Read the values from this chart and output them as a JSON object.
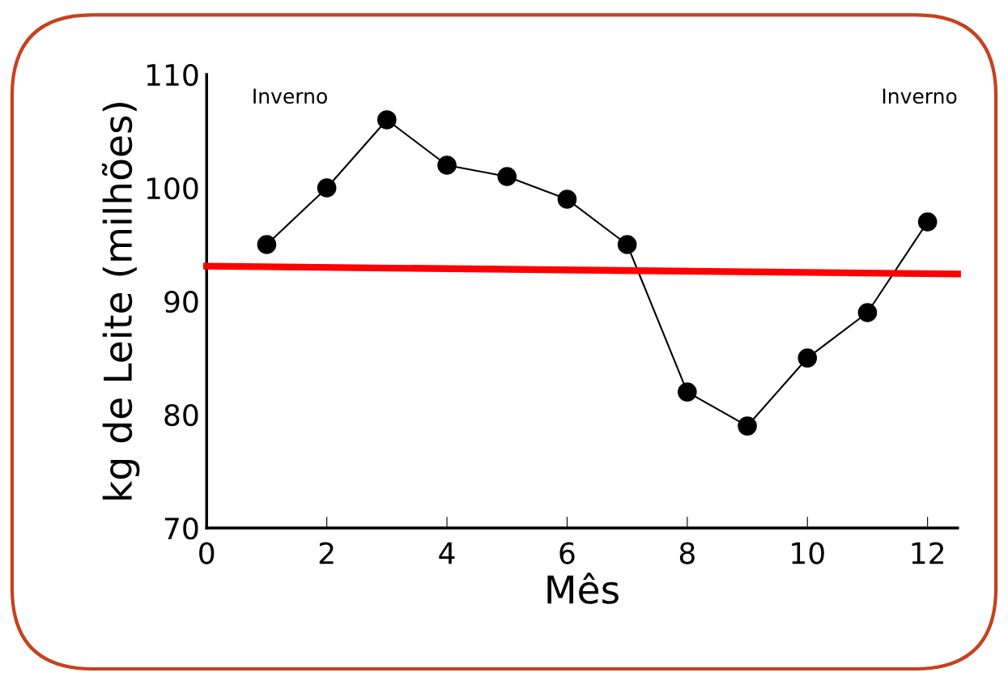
{
  "chart_data": {
    "type": "line",
    "xlabel": "Mês",
    "ylabel": "kg de Leite (milhões)",
    "annotations": [
      "Inverno",
      "Inverno"
    ],
    "x": [
      1,
      2,
      3,
      4,
      5,
      6,
      7,
      8,
      9,
      10,
      11,
      12
    ],
    "series": [
      {
        "color": "#000000",
        "values": [
          95,
          100,
          106,
          102,
          101,
          99,
          95,
          82,
          79,
          85,
          89,
          97
        ],
        "marker": "circle"
      },
      {
        "type": "line",
        "color": "#ff0000",
        "x": [
          0,
          12.5
        ],
        "values": [
          93.1,
          92.4
        ],
        "marker": "none"
      }
    ],
    "xlim": [
      0,
      12.5
    ],
    "xticks": [
      0,
      2,
      4,
      6,
      8,
      10,
      12
    ],
    "ylim": [
      70,
      110
    ],
    "yticks": [
      70,
      80,
      90,
      100,
      110
    ],
    "grid": false,
    "legend": false
  }
}
